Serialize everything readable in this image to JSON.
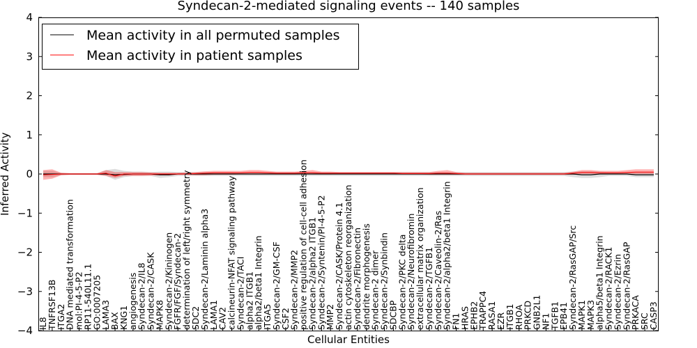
{
  "chart_data": {
    "type": "line",
    "title": "Syndecan-2-mediated signaling events -- 140 samples",
    "xlabel": "Cellular Entities",
    "ylabel": "Inferred Activity",
    "ylim": [
      -4,
      4
    ],
    "yticks": [
      "−4",
      "−3",
      "−2",
      "−1",
      "0",
      "1",
      "2",
      "3",
      "4"
    ],
    "legend_position": "top-left",
    "categories": [
      "IL8",
      "TNFRSF13B",
      "ITGA2",
      "DNA mediated transformation",
      "mol:PI-4-5-P2",
      "RP11-540L11.1",
      "GO:0007205",
      "LAMA3",
      "BAX",
      "KNG1",
      "angiogenesis",
      "Syndecan-2/IL8",
      "Syndecan-2/CASK",
      "MAPK8",
      "Syndecan-2/Kininogen",
      "FGFR/FGF/Syndecan-2",
      "determination of left/right symmetry",
      "SDC2",
      "Syndecan-2/Laminin alpha3",
      "LAMA1",
      "CAV2",
      "calcineurin-NFAT signaling pathway",
      "Syndecan-2/TACI",
      "alpha2 ITGB1",
      "alpha2/beta1 Integrin",
      "ITGA5",
      "Syndecan-2/GM-CSF",
      "CSF2",
      "Syndecan-2/MMP2",
      "positive regulation of cell-cell adhesion",
      "Syndecan-2/alpha2 ITGB1",
      "Syndecan-2/Syntenin/PI-4-5-P2",
      "MMP2",
      "Syndecan-2/CASK/Protein 4.1",
      "actin cytoskeleton reorganization",
      "Syndecan-2/Fibronectin",
      "dendrite morphogenesis",
      "Syndecan-2 dimer",
      "Syndecan-2/Synbindin",
      "SDCBP",
      "Syndecan-2/PKC delta",
      "Syndecan-2/Neurofibromin",
      "extracellular matrix organization",
      "Syndecan-2/TGFB1",
      "Syndecan-2/Caveolin-2/Ras",
      "Syndecan-2/alpha2/beta1 Integrin",
      "FN1",
      "HRAS",
      "EPHB2",
      "TRAPPC4",
      "RASA1",
      "EZR",
      "ITGB1",
      "RHOA",
      "PRKCD",
      "GNB2L1",
      "NF1",
      "TGFB1",
      "EPB41",
      "Syndecan-2/RasGAP/Src",
      "MAPK1",
      "MAPK3",
      "alpha5/beta1 Integrin",
      "Syndecan-2/RACK1",
      "Syndecan-2/Ezrin",
      "Syndecan-2/RasGAP",
      "PRKACA",
      "SRC",
      "CASP3"
    ],
    "series": [
      {
        "name": "Mean activity in all permuted samples",
        "color": "#000000",
        "values": [
          0,
          0,
          0,
          0,
          0,
          0,
          0,
          0,
          -0.02,
          -0.01,
          0,
          0,
          0,
          -0.02,
          -0.02,
          0,
          0,
          0,
          0,
          0,
          0,
          0,
          0,
          0,
          0,
          0,
          0,
          0,
          0,
          0,
          0,
          0,
          0,
          0,
          0,
          0,
          0,
          0,
          0,
          0,
          0,
          0,
          0,
          0,
          0,
          0,
          0,
          0,
          0,
          0,
          0,
          0,
          0,
          0,
          0,
          0,
          0,
          0,
          0,
          0,
          -0.02,
          -0.02,
          0,
          0,
          0,
          0,
          -0.02,
          -0.02,
          -0.02
        ],
        "band_lower": [
          -0.08,
          -0.08,
          -0.03,
          -0.02,
          -0.02,
          -0.02,
          -0.02,
          -0.05,
          -0.15,
          -0.08,
          -0.05,
          -0.05,
          -0.05,
          -0.1,
          -0.08,
          -0.05,
          -0.05,
          -0.05,
          -0.05,
          -0.05,
          -0.05,
          -0.05,
          -0.05,
          -0.05,
          -0.05,
          -0.05,
          -0.05,
          -0.05,
          -0.05,
          -0.05,
          -0.05,
          -0.05,
          -0.05,
          -0.05,
          -0.05,
          -0.05,
          -0.05,
          -0.05,
          -0.05,
          -0.05,
          -0.05,
          -0.05,
          -0.05,
          -0.05,
          -0.05,
          -0.05,
          -0.05,
          -0.05,
          -0.05,
          -0.05,
          -0.05,
          -0.05,
          -0.05,
          -0.05,
          -0.05,
          -0.05,
          -0.05,
          -0.05,
          -0.05,
          -0.08,
          -0.1,
          -0.1,
          -0.08,
          -0.05,
          -0.05,
          -0.05,
          -0.08,
          -0.08,
          -0.08
        ],
        "band_upper": [
          0.08,
          0.08,
          0.03,
          0.02,
          0.02,
          0.02,
          0.02,
          0.1,
          0.13,
          0.08,
          0.06,
          0.06,
          0.05,
          0.06,
          0.06,
          0.05,
          0.05,
          0.05,
          0.05,
          0.05,
          0.05,
          0.05,
          0.05,
          0.05,
          0.05,
          0.05,
          0.05,
          0.05,
          0.05,
          0.05,
          0.05,
          0.05,
          0.05,
          0.05,
          0.05,
          0.05,
          0.05,
          0.05,
          0.05,
          0.05,
          0.05,
          0.05,
          0.05,
          0.05,
          0.05,
          0.05,
          0.05,
          0.05,
          0.05,
          0.05,
          0.05,
          0.05,
          0.05,
          0.05,
          0.05,
          0.05,
          0.05,
          0.05,
          0.05,
          0.06,
          0.07,
          0.07,
          0.06,
          0.05,
          0.05,
          0.05,
          0.06,
          0.06,
          0.06
        ]
      },
      {
        "name": "Mean activity in patient samples",
        "color": "#ff0000",
        "values": [
          -0.02,
          -0.01,
          0,
          0,
          0,
          0,
          0,
          0.02,
          -0.05,
          0,
          0,
          0,
          0,
          0,
          0,
          0,
          0,
          0.01,
          0.02,
          0.03,
          0.03,
          0.03,
          0.03,
          0.04,
          0.04,
          0.03,
          0.02,
          0.02,
          0.02,
          0.03,
          0.03,
          0.02,
          0.02,
          0.02,
          0.02,
          0.02,
          0.02,
          0.02,
          0.02,
          0.02,
          0.01,
          0.01,
          0.01,
          0.01,
          0.02,
          0.02,
          0.01,
          0,
          0,
          0,
          0,
          0,
          0,
          0,
          0,
          0,
          0,
          0,
          0,
          0.02,
          0.04,
          0.04,
          0.03,
          0.03,
          0.03,
          0.04,
          0.05,
          0.05,
          0.05
        ],
        "band_lower": [
          -0.15,
          -0.12,
          -0.03,
          -0.02,
          -0.02,
          -0.02,
          -0.02,
          -0.05,
          -0.1,
          -0.05,
          -0.05,
          -0.05,
          -0.04,
          -0.03,
          -0.03,
          -0.02,
          -0.02,
          -0.03,
          -0.03,
          -0.02,
          -0.02,
          -0.02,
          -0.01,
          -0.01,
          -0.01,
          -0.01,
          -0.01,
          -0.01,
          -0.01,
          0,
          -0.01,
          -0.01,
          -0.01,
          0,
          0,
          0,
          0,
          0,
          0,
          0,
          -0.01,
          -0.01,
          -0.01,
          -0.02,
          -0.02,
          -0.02,
          -0.02,
          -0.02,
          -0.02,
          -0.02,
          -0.02,
          -0.02,
          -0.02,
          -0.02,
          -0.02,
          -0.02,
          -0.02,
          -0.02,
          -0.02,
          -0.02,
          0,
          0,
          0,
          0,
          0,
          0,
          0,
          0,
          0
        ],
        "band_upper": [
          0.1,
          0.12,
          0.03,
          0.02,
          0.02,
          0.02,
          0.02,
          0.1,
          0.05,
          0.05,
          0.05,
          0.05,
          0.04,
          0.03,
          0.03,
          0.03,
          0.04,
          0.05,
          0.07,
          0.08,
          0.08,
          0.08,
          0.08,
          0.1,
          0.1,
          0.08,
          0.06,
          0.06,
          0.06,
          0.08,
          0.1,
          0.06,
          0.06,
          0.05,
          0.05,
          0.05,
          0.05,
          0.05,
          0.05,
          0.05,
          0.05,
          0.05,
          0.05,
          0.05,
          0.08,
          0.1,
          0.05,
          0.03,
          0.03,
          0.03,
          0.03,
          0.03,
          0.03,
          0.03,
          0.03,
          0.03,
          0.03,
          0.03,
          0.03,
          0.06,
          0.1,
          0.1,
          0.08,
          0.08,
          0.08,
          0.1,
          0.12,
          0.12,
          0.12
        ]
      }
    ]
  }
}
